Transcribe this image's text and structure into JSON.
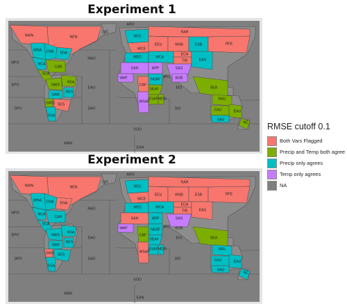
{
  "colors": {
    "Both Vars Flagged": "#f8766d",
    "Precip and Temp both agree": "#7cae00",
    "Precip only agrees": "#00bfc4",
    "Temp only agrees": "#c77cff",
    "NA": "#7f7f7f",
    "frame": "#e3e3e3",
    "line": "#555555"
  },
  "legend": {
    "title": "RMSE cutoff 0.1",
    "items": [
      "Both Vars Flagged",
      "Precip and Temp both agree",
      "Precip only agrees",
      "Temp only agrees",
      "NA"
    ]
  },
  "chart_data": [
    {
      "type": "map",
      "title": "Experiment 1",
      "regions": [
        {
          "label": "NWN",
          "category": "Both Vars Flagged"
        },
        {
          "label": "NEN",
          "category": "Both Vars Flagged"
        },
        {
          "label": "GIC",
          "category": "NA"
        },
        {
          "label": "ARO",
          "category": "NA"
        },
        {
          "label": "NEU",
          "category": "Precip only agrees"
        },
        {
          "label": "RAR",
          "category": "Both Vars Flagged"
        },
        {
          "label": "WNA",
          "category": "Precip only agrees"
        },
        {
          "label": "CNA",
          "category": "Precip only agrees"
        },
        {
          "label": "ENA",
          "category": "Precip only agrees"
        },
        {
          "label": "NAO",
          "category": "NA"
        },
        {
          "label": "WCE",
          "category": "Both Vars Flagged"
        },
        {
          "label": "EEU",
          "category": "Both Vars Flagged"
        },
        {
          "label": "WSB",
          "category": "Both Vars Flagged"
        },
        {
          "label": "ESB",
          "category": "Precip only agrees"
        },
        {
          "label": "RFE",
          "category": "Both Vars Flagged"
        },
        {
          "label": "NPO",
          "category": "NA"
        },
        {
          "label": "NCA",
          "category": "Precip only agrees"
        },
        {
          "label": "MED",
          "category": "Precip only agrees"
        },
        {
          "label": "WCA",
          "category": "Precip only agrees"
        },
        {
          "label": "ECA",
          "category": "Both Vars Flagged"
        },
        {
          "label": "TIB",
          "category": "Both Vars Flagged"
        },
        {
          "label": "EAS",
          "category": "Precip only agrees"
        },
        {
          "label": "CAR",
          "category": "Precip and Temp both agree"
        },
        {
          "label": "SCA",
          "category": "Precip and Temp both agree"
        },
        {
          "label": "SAH",
          "category": "Temp only agrees"
        },
        {
          "label": "ARP",
          "category": "Temp only agrees"
        },
        {
          "label": "SAS",
          "category": "Temp only agrees"
        },
        {
          "label": "WAF",
          "category": "Temp only agrees"
        },
        {
          "label": "ARS",
          "category": "NA"
        },
        {
          "label": "BOB",
          "category": "Temp only agrees"
        },
        {
          "label": "EPO",
          "category": "NA"
        },
        {
          "label": "NWS",
          "category": "Precip and Temp both agree"
        },
        {
          "label": "NSA",
          "category": "Precip and Temp both agree"
        },
        {
          "label": "EAO",
          "category": "NA"
        },
        {
          "label": "NEAF",
          "category": "Precip only agrees"
        },
        {
          "label": "EIO",
          "category": "NA"
        },
        {
          "label": "SEA",
          "category": "Precip and Temp both agree"
        },
        {
          "label": "CAF",
          "category": "Both Vars Flagged"
        },
        {
          "label": "SEAF",
          "category": "Precip and Temp both agree"
        },
        {
          "label": "SAM",
          "category": "Precip only agrees"
        },
        {
          "label": "NES",
          "category": "Precip only agrees"
        },
        {
          "label": "NAU",
          "category": "Precip and Temp both agree"
        },
        {
          "label": "SPO",
          "category": "NA"
        },
        {
          "label": "SAO",
          "category": "NA"
        },
        {
          "label": "WSAF",
          "category": "Temp only agrees"
        },
        {
          "label": "ESAF",
          "category": "Precip and Temp both agree"
        },
        {
          "label": "MDG",
          "category": "Precip and Temp both agree"
        },
        {
          "label": "SIO",
          "category": "NA"
        },
        {
          "label": "CAU",
          "category": "Precip and Temp both agree"
        },
        {
          "label": "EAU",
          "category": "Precip and Temp both agree"
        },
        {
          "label": "SWS",
          "category": "Precip and Temp both agree"
        },
        {
          "label": "SES",
          "category": "Both Vars Flagged"
        },
        {
          "label": "SAU",
          "category": "Precip only agrees"
        },
        {
          "label": "NZ",
          "category": "Precip and Temp both agree"
        },
        {
          "label": "SSA",
          "category": "Precip only agrees"
        },
        {
          "label": "SOO",
          "category": "NA"
        },
        {
          "label": "WAN",
          "category": "NA"
        },
        {
          "label": "EAN",
          "category": "NA"
        }
      ]
    },
    {
      "type": "map",
      "title": "Experiment 2",
      "regions": [
        {
          "label": "NWN",
          "category": "Both Vars Flagged"
        },
        {
          "label": "NEN",
          "category": "Both Vars Flagged"
        },
        {
          "label": "GIC",
          "category": "NA"
        },
        {
          "label": "ARO",
          "category": "NA"
        },
        {
          "label": "NEU",
          "category": "Precip only agrees"
        },
        {
          "label": "RAR",
          "category": "Both Vars Flagged"
        },
        {
          "label": "WNA",
          "category": "Precip only agrees"
        },
        {
          "label": "CNA",
          "category": "Precip only agrees"
        },
        {
          "label": "ENA",
          "category": "Both Vars Flagged"
        },
        {
          "label": "NAO",
          "category": "NA"
        },
        {
          "label": "WCE",
          "category": "Both Vars Flagged"
        },
        {
          "label": "EEU",
          "category": "Both Vars Flagged"
        },
        {
          "label": "WSB",
          "category": "Both Vars Flagged"
        },
        {
          "label": "ESB",
          "category": "Both Vars Flagged"
        },
        {
          "label": "RFE",
          "category": "Both Vars Flagged"
        },
        {
          "label": "NPO",
          "category": "NA"
        },
        {
          "label": "NCA",
          "category": "Precip only agrees"
        },
        {
          "label": "MED",
          "category": "Precip only agrees"
        },
        {
          "label": "WCA",
          "category": "Precip only agrees"
        },
        {
          "label": "ECA",
          "category": "Both Vars Flagged"
        },
        {
          "label": "TIB",
          "category": "Both Vars Flagged"
        },
        {
          "label": "EAS",
          "category": "Both Vars Flagged"
        },
        {
          "label": "CAR",
          "category": "Precip only agrees"
        },
        {
          "label": "SCA",
          "category": "Precip only agrees"
        },
        {
          "label": "SAH",
          "category": "Both Vars Flagged"
        },
        {
          "label": "ARP",
          "category": "Precip only agrees"
        },
        {
          "label": "SAS",
          "category": "Temp only agrees"
        },
        {
          "label": "WAF",
          "category": "Temp only agrees"
        },
        {
          "label": "ARS",
          "category": "NA"
        },
        {
          "label": "BOB",
          "category": "NA"
        },
        {
          "label": "EPO",
          "category": "NA"
        },
        {
          "label": "NWS",
          "category": "Precip only agrees"
        },
        {
          "label": "NSA",
          "category": "Precip only agrees"
        },
        {
          "label": "EAO",
          "category": "NA"
        },
        {
          "label": "NEAF",
          "category": "Precip only agrees"
        },
        {
          "label": "EIO",
          "category": "NA"
        },
        {
          "label": "SEA",
          "category": "Precip and Temp both agree"
        },
        {
          "label": "CAF",
          "category": "Precip and Temp both agree"
        },
        {
          "label": "SEAF",
          "category": "Precip only agrees"
        },
        {
          "label": "SAM",
          "category": "Precip only agrees"
        },
        {
          "label": "NES",
          "category": "Precip only agrees"
        },
        {
          "label": "NAU",
          "category": "Precip only agrees"
        },
        {
          "label": "SPO",
          "category": "NA"
        },
        {
          "label": "SAO",
          "category": "NA"
        },
        {
          "label": "WSAF",
          "category": "Both Vars Flagged"
        },
        {
          "label": "ESAF",
          "category": "Precip only agrees"
        },
        {
          "label": "MDG",
          "category": "Precip only agrees"
        },
        {
          "label": "SIO",
          "category": "NA"
        },
        {
          "label": "CAU",
          "category": "Precip only agrees"
        },
        {
          "label": "EAU",
          "category": "Precip only agrees"
        },
        {
          "label": "SWS",
          "category": "Both Vars Flagged"
        },
        {
          "label": "SES",
          "category": "Precip only agrees"
        },
        {
          "label": "SAU",
          "category": "Precip only agrees"
        },
        {
          "label": "NZ",
          "category": "Precip only agrees"
        },
        {
          "label": "SSA",
          "category": "Precip only agrees"
        },
        {
          "label": "SOO",
          "category": "NA"
        },
        {
          "label": "WAN",
          "category": "NA"
        },
        {
          "label": "EAN",
          "category": "NA"
        }
      ]
    }
  ]
}
